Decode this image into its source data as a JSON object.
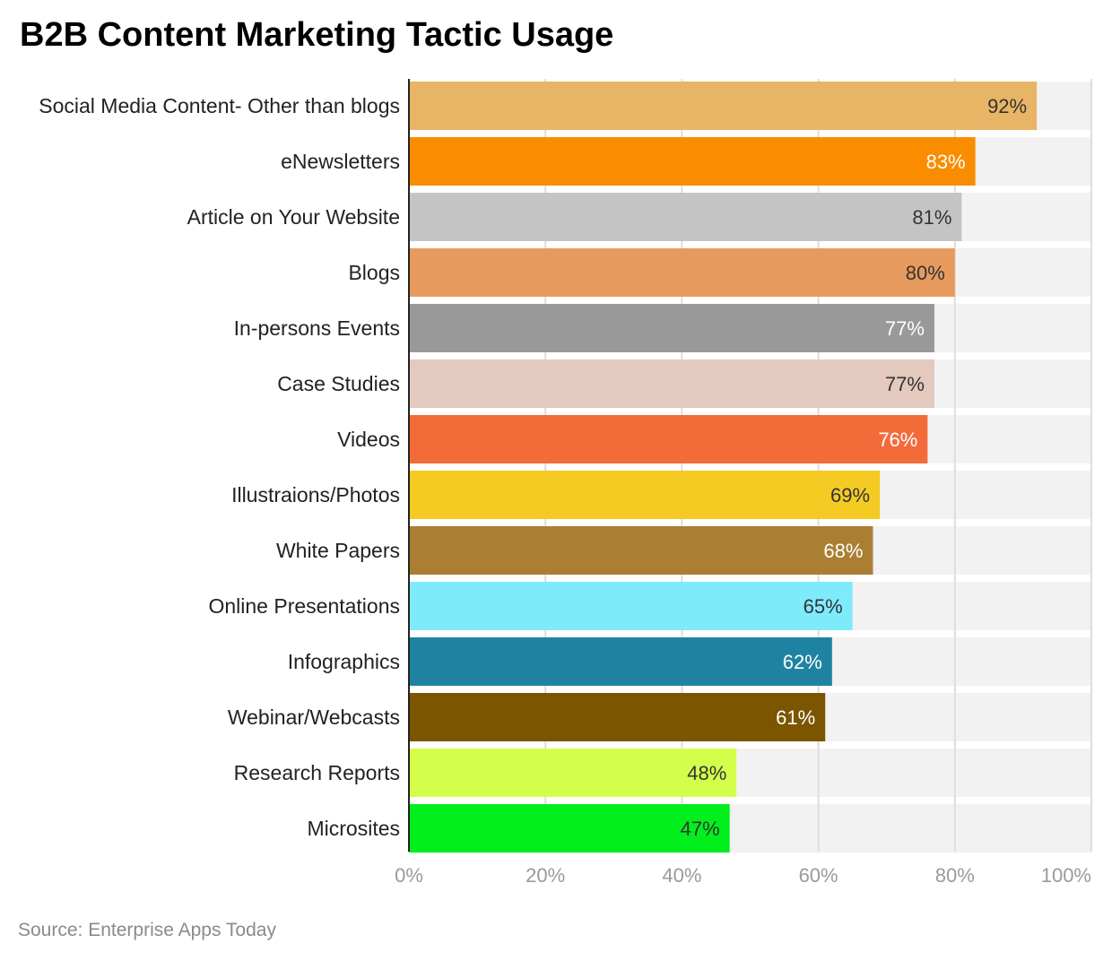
{
  "chart_data": {
    "type": "bar",
    "orientation": "horizontal",
    "title": "B2B Content Marketing Tactic Usage",
    "source": "Source: Enterprise Apps Today",
    "categories": [
      "Social Media Content- Other than blogs",
      "eNewsletters",
      "Article on Your Website",
      "Blogs",
      "In-persons Events",
      "Case Studies",
      "Videos",
      "Illustraions/Photos",
      "White Papers",
      "Online Presentations",
      "Infographics",
      "Webinar/Webcasts",
      "Research Reports",
      "Microsites"
    ],
    "values": [
      92,
      83,
      81,
      80,
      77,
      77,
      76,
      69,
      68,
      65,
      62,
      61,
      48,
      47
    ],
    "value_labels": [
      "92%",
      "83%",
      "81%",
      "80%",
      "77%",
      "77%",
      "76%",
      "69%",
      "68%",
      "65%",
      "62%",
      "61%",
      "48%",
      "47%"
    ],
    "colors": [
      "#E8B466",
      "#FA8C00",
      "#C4C4C4",
      "#E79A5E",
      "#999999",
      "#E3C9BE",
      "#F46B3A",
      "#F3CB23",
      "#AA7F33",
      "#7EEBFB",
      "#1E83A1",
      "#7B5500",
      "#D3FF4A",
      "#00EF1D"
    ],
    "label_colors": [
      "#333333",
      "#ffffff",
      "#333333",
      "#333333",
      "#ffffff",
      "#333333",
      "#ffffff",
      "#333333",
      "#ffffff",
      "#333333",
      "#ffffff",
      "#ffffff",
      "#333333",
      "#333333"
    ],
    "xlim": [
      0,
      100
    ],
    "xticks": [
      0,
      20,
      40,
      60,
      80,
      100
    ],
    "xtick_labels": [
      "0%",
      "20%",
      "40%",
      "60%",
      "80%",
      "100%"
    ],
    "grid": true,
    "background_track_color": "#F2F2F2",
    "gridline_color": "#DDDDDD"
  }
}
